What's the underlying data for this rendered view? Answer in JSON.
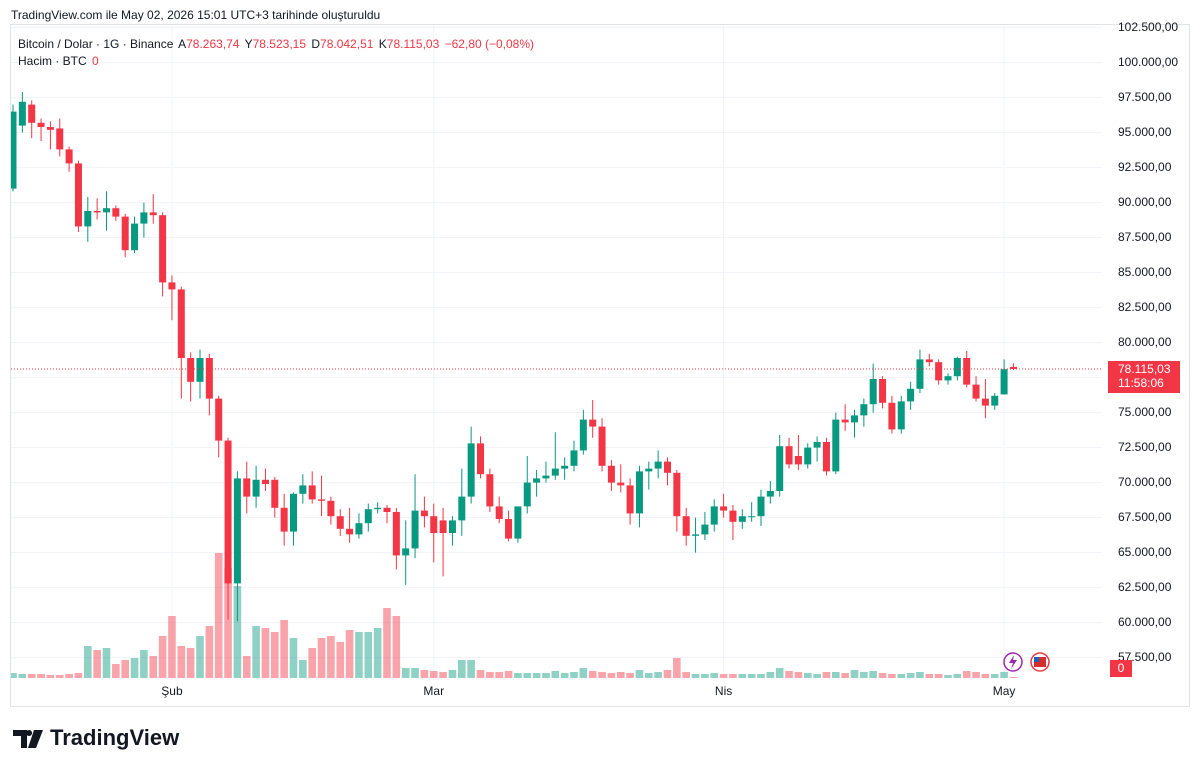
{
  "header": "TradingView.com ile May 02, 2026 15:01 UTC+3 tarihinde oluşturuldu",
  "legend": {
    "symbol": "Bitcoin / Dolar · 1G · Binance",
    "open_label": "A",
    "open": "78.263,74",
    "high_label": "Y",
    "high": "78.523,15",
    "low_label": "D",
    "low": "78.042,51",
    "close_label": "K",
    "close": "78.115,03",
    "change": "−62,80 (−0,08%)",
    "volume_title": "Hacim · BTC",
    "volume_value": "0"
  },
  "price_tag": {
    "price": "78.115,03",
    "countdown": "11:58:06"
  },
  "volume_axis_label": "0",
  "footer": "TradingView",
  "chart_data": {
    "type": "candlestick",
    "up_color": "#089981",
    "down_color": "#f23645",
    "grid": true,
    "ylim": [
      55900,
      102900
    ],
    "yticks": [
      {
        "value": 57500,
        "label": "57.500,00"
      },
      {
        "value": 60000,
        "label": "60.000,00"
      },
      {
        "value": 62500,
        "label": "62.500,00"
      },
      {
        "value": 65000,
        "label": "65.000,00"
      },
      {
        "value": 67500,
        "label": "67.500,00"
      },
      {
        "value": 70000,
        "label": "70.000,00"
      },
      {
        "value": 72500,
        "label": "72.500,00"
      },
      {
        "value": 75000,
        "label": "75.000,00"
      },
      {
        "value": 77500,
        "label": "77.500,00"
      },
      {
        "value": 80000,
        "label": "80.000,00"
      },
      {
        "value": 82500,
        "label": "82.500,00"
      },
      {
        "value": 85000,
        "label": "85.000,00"
      },
      {
        "value": 87500,
        "label": "87.500,00"
      },
      {
        "value": 90000,
        "label": "90.000,00"
      },
      {
        "value": 92500,
        "label": "92.500,00"
      },
      {
        "value": 95000,
        "label": "95.000,00"
      },
      {
        "value": 97500,
        "label": "97.500,00"
      },
      {
        "value": 100000,
        "label": "100.000,00"
      },
      {
        "value": 102500,
        "label": "102.500,00"
      }
    ],
    "categories": [
      null,
      null,
      null,
      null,
      null,
      null,
      null,
      null,
      null,
      null,
      null,
      null,
      null,
      null,
      null,
      null,
      null,
      "Şub",
      null,
      null,
      null,
      null,
      null,
      null,
      null,
      null,
      null,
      null,
      null,
      null,
      null,
      null,
      null,
      null,
      null,
      null,
      null,
      null,
      null,
      null,
      null,
      null,
      null,
      null,
      null,
      "Mar",
      null,
      null,
      null,
      null,
      null,
      null,
      null,
      null,
      null,
      null,
      null,
      null,
      null,
      null,
      null,
      null,
      null,
      null,
      null,
      null,
      null,
      null,
      null,
      null,
      null,
      null,
      null,
      null,
      null,
      null,
      "Nis",
      null,
      null,
      null,
      null,
      null,
      null,
      null,
      null,
      null,
      null,
      null,
      null,
      null,
      null,
      null,
      null,
      null,
      null,
      null,
      null,
      null,
      null,
      null,
      null,
      null,
      null,
      null,
      null,
      null,
      "May",
      null
    ],
    "open": [
      91000,
      95500,
      97000,
      95700,
      95400,
      95300,
      93800,
      92800,
      88300,
      89400,
      89300,
      89600,
      89000,
      86600,
      88500,
      89300,
      89100,
      84300,
      83800,
      78900,
      77200,
      78900,
      76000,
      73000,
      62800,
      70300,
      69000,
      70200,
      70200,
      68200,
      66500,
      69200,
      69800,
      68800,
      68700,
      67600,
      66700,
      66300,
      67100,
      68100,
      68200,
      67900,
      64800,
      65300,
      68000,
      67600,
      67300,
      66400,
      67300,
      69000,
      72800,
      70600,
      68300,
      67400,
      66000,
      68300,
      70000,
      70300,
      70500,
      71000,
      71200,
      72300,
      74500,
      74000,
      71200,
      70000,
      69800,
      67800,
      70800,
      71000,
      71500,
      70700,
      67600,
      66200,
      66300,
      67000,
      68300,
      68000,
      67200,
      67600,
      67600,
      69000,
      69400,
      72600,
      71900,
      71300,
      72500,
      72900,
      70800,
      74500,
      74300,
      74800,
      75600,
      77400,
      75700,
      73800,
      75800,
      76700,
      78800,
      78600,
      77300,
      77600,
      78900,
      77000,
      76000,
      75500,
      76300,
      78263.74
    ],
    "high": [
      97000,
      97900,
      97300,
      96000,
      95800,
      96000,
      94000,
      93000,
      90400,
      90300,
      90800,
      89800,
      89200,
      89000,
      90000,
      90600,
      89300,
      84800,
      84000,
      79300,
      79500,
      79200,
      76200,
      73200,
      70800,
      71500,
      71200,
      71000,
      70400,
      69200,
      69300,
      70600,
      70800,
      70500,
      69000,
      68100,
      68200,
      67800,
      68500,
      68600,
      68400,
      68200,
      67300,
      70600,
      69000,
      68500,
      68200,
      67600,
      71000,
      74000,
      73300,
      71000,
      69000,
      68000,
      68300,
      71900,
      70900,
      71500,
      73600,
      71800,
      73000,
      75200,
      75900,
      74600,
      71600,
      71300,
      70300,
      71200,
      71500,
      72300,
      71800,
      70900,
      68200,
      67500,
      67900,
      68800,
      69200,
      68400,
      68100,
      68600,
      69500,
      70100,
      73400,
      73200,
      73400,
      72800,
      73300,
      73200,
      75000,
      75600,
      75200,
      76000,
      78500,
      77600,
      76200,
      76200,
      77200,
      79500,
      79200,
      78800,
      77800,
      79000,
      79400,
      77600,
      77400,
      76400,
      78800,
      78523.15
    ],
    "low": [
      90800,
      95000,
      94600,
      94400,
      93800,
      93300,
      92200,
      87900,
      87200,
      88800,
      88000,
      88700,
      86100,
      86400,
      87500,
      88500,
      83300,
      81600,
      76000,
      75800,
      76000,
      74800,
      71800,
      60200,
      60100,
      67800,
      68200,
      69400,
      67500,
      65500,
      65500,
      68500,
      68500,
      67600,
      67000,
      66200,
      65700,
      66000,
      66500,
      67800,
      67100,
      63800,
      62700,
      64600,
      66800,
      64300,
      63300,
      65500,
      66200,
      68500,
      70300,
      67900,
      67100,
      65800,
      65700,
      67800,
      69000,
      70000,
      70200,
      70200,
      70800,
      72000,
      73200,
      70800,
      69400,
      69300,
      67000,
      66800,
      69500,
      70300,
      69800,
      66500,
      65500,
      65000,
      65900,
      66500,
      67500,
      65900,
      66700,
      67200,
      66900,
      68500,
      69000,
      71000,
      70900,
      71000,
      71500,
      70500,
      70600,
      73700,
      73200,
      74000,
      75000,
      75300,
      73500,
      73500,
      75200,
      76400,
      78300,
      77000,
      77000,
      77300,
      76800,
      75800,
      74600,
      75200,
      76300,
      78042.51
    ],
    "close": [
      96500,
      97200,
      95700,
      95400,
      95200,
      93800,
      92800,
      88300,
      89400,
      89300,
      89600,
      89000,
      86600,
      88500,
      89300,
      89100,
      84300,
      83800,
      78900,
      77200,
      78900,
      76000,
      73000,
      62800,
      70300,
      69000,
      70200,
      69900,
      68200,
      66500,
      69200,
      69800,
      68800,
      68700,
      67600,
      66700,
      66300,
      67100,
      68100,
      68200,
      67900,
      64800,
      65300,
      68000,
      67600,
      66400,
      66400,
      67300,
      69000,
      72800,
      70600,
      68300,
      67400,
      66000,
      68300,
      70000,
      70300,
      70500,
      71000,
      71200,
      72300,
      74500,
      74000,
      71200,
      70000,
      69800,
      67800,
      70800,
      71000,
      71500,
      70700,
      67600,
      66200,
      66300,
      67000,
      68300,
      68000,
      67200,
      67600,
      67600,
      69000,
      69400,
      72600,
      71300,
      71300,
      72500,
      72900,
      70800,
      74500,
      74300,
      74800,
      75600,
      77400,
      75700,
      73800,
      75800,
      76700,
      78800,
      78600,
      77300,
      77600,
      78900,
      77000,
      76000,
      75500,
      76200,
      78100,
      78115.03
    ],
    "volume": [
      5,
      4,
      4,
      4,
      3,
      3,
      4,
      5,
      32,
      28,
      30,
      14,
      18,
      20,
      28,
      22,
      42,
      62,
      32,
      30,
      42,
      52,
      125,
      110,
      92,
      22,
      52,
      50,
      46,
      58,
      40,
      18,
      30,
      40,
      42,
      36,
      48,
      46,
      46,
      50,
      70,
      62,
      10,
      10,
      8,
      7,
      6,
      8,
      18,
      18,
      8,
      6,
      6,
      7,
      5,
      5,
      5,
      5,
      7,
      5,
      6,
      10,
      7,
      6,
      5,
      6,
      5,
      8,
      5,
      6,
      8,
      20,
      6,
      4,
      4,
      5,
      4,
      4,
      4,
      4,
      4,
      6,
      10,
      7,
      6,
      5,
      4,
      6,
      6,
      5,
      8,
      6,
      7,
      5,
      4,
      4,
      5,
      6,
      4,
      4,
      3,
      4,
      7,
      6,
      4,
      4,
      6,
      1
    ]
  }
}
